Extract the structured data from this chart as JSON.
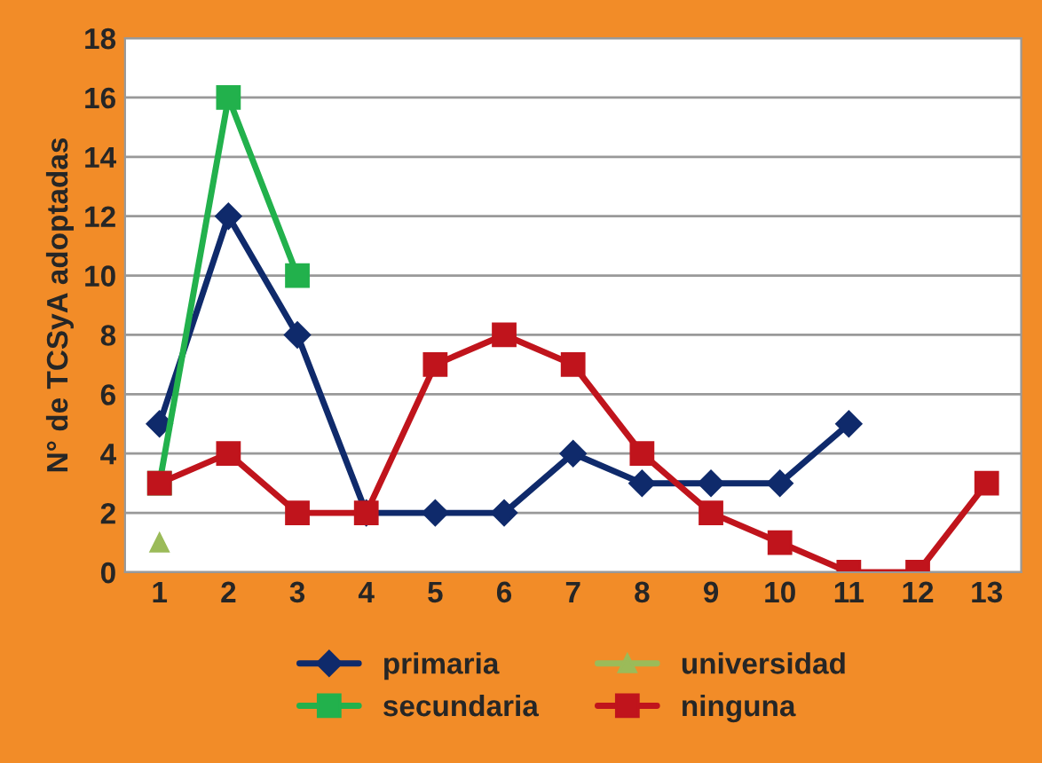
{
  "chart_data": {
    "type": "line",
    "ylabel": "N° de TCSyA adoptadas",
    "categories": [
      "1",
      "2",
      "3",
      "4",
      "5",
      "6",
      "7",
      "8",
      "9",
      "10",
      "11",
      "12",
      "13"
    ],
    "ylim": [
      0,
      18
    ],
    "yticks": [
      0,
      2,
      4,
      6,
      8,
      10,
      12,
      14,
      16,
      18
    ],
    "grid": "y",
    "legend": "bottom",
    "series": [
      {
        "name": "primaria",
        "color": "#0f2a6b",
        "marker": "diamond",
        "values": [
          5,
          12,
          8,
          2,
          2,
          2,
          4,
          3,
          3,
          3,
          5,
          null,
          null
        ]
      },
      {
        "name": "secundaria",
        "color": "#22b14c",
        "marker": "square",
        "values": [
          3,
          16,
          10,
          null,
          null,
          null,
          null,
          null,
          null,
          null,
          null,
          null,
          null
        ]
      },
      {
        "name": "universidad",
        "color": "#9bbb59",
        "marker": "triangle",
        "values": [
          1,
          null,
          null,
          null,
          null,
          null,
          null,
          null,
          null,
          null,
          null,
          null,
          null
        ]
      },
      {
        "name": "ninguna",
        "color": "#c0141c",
        "marker": "square",
        "values": [
          3,
          4,
          2,
          2,
          7,
          8,
          7,
          4,
          2,
          1,
          0,
          0,
          3
        ]
      }
    ]
  }
}
